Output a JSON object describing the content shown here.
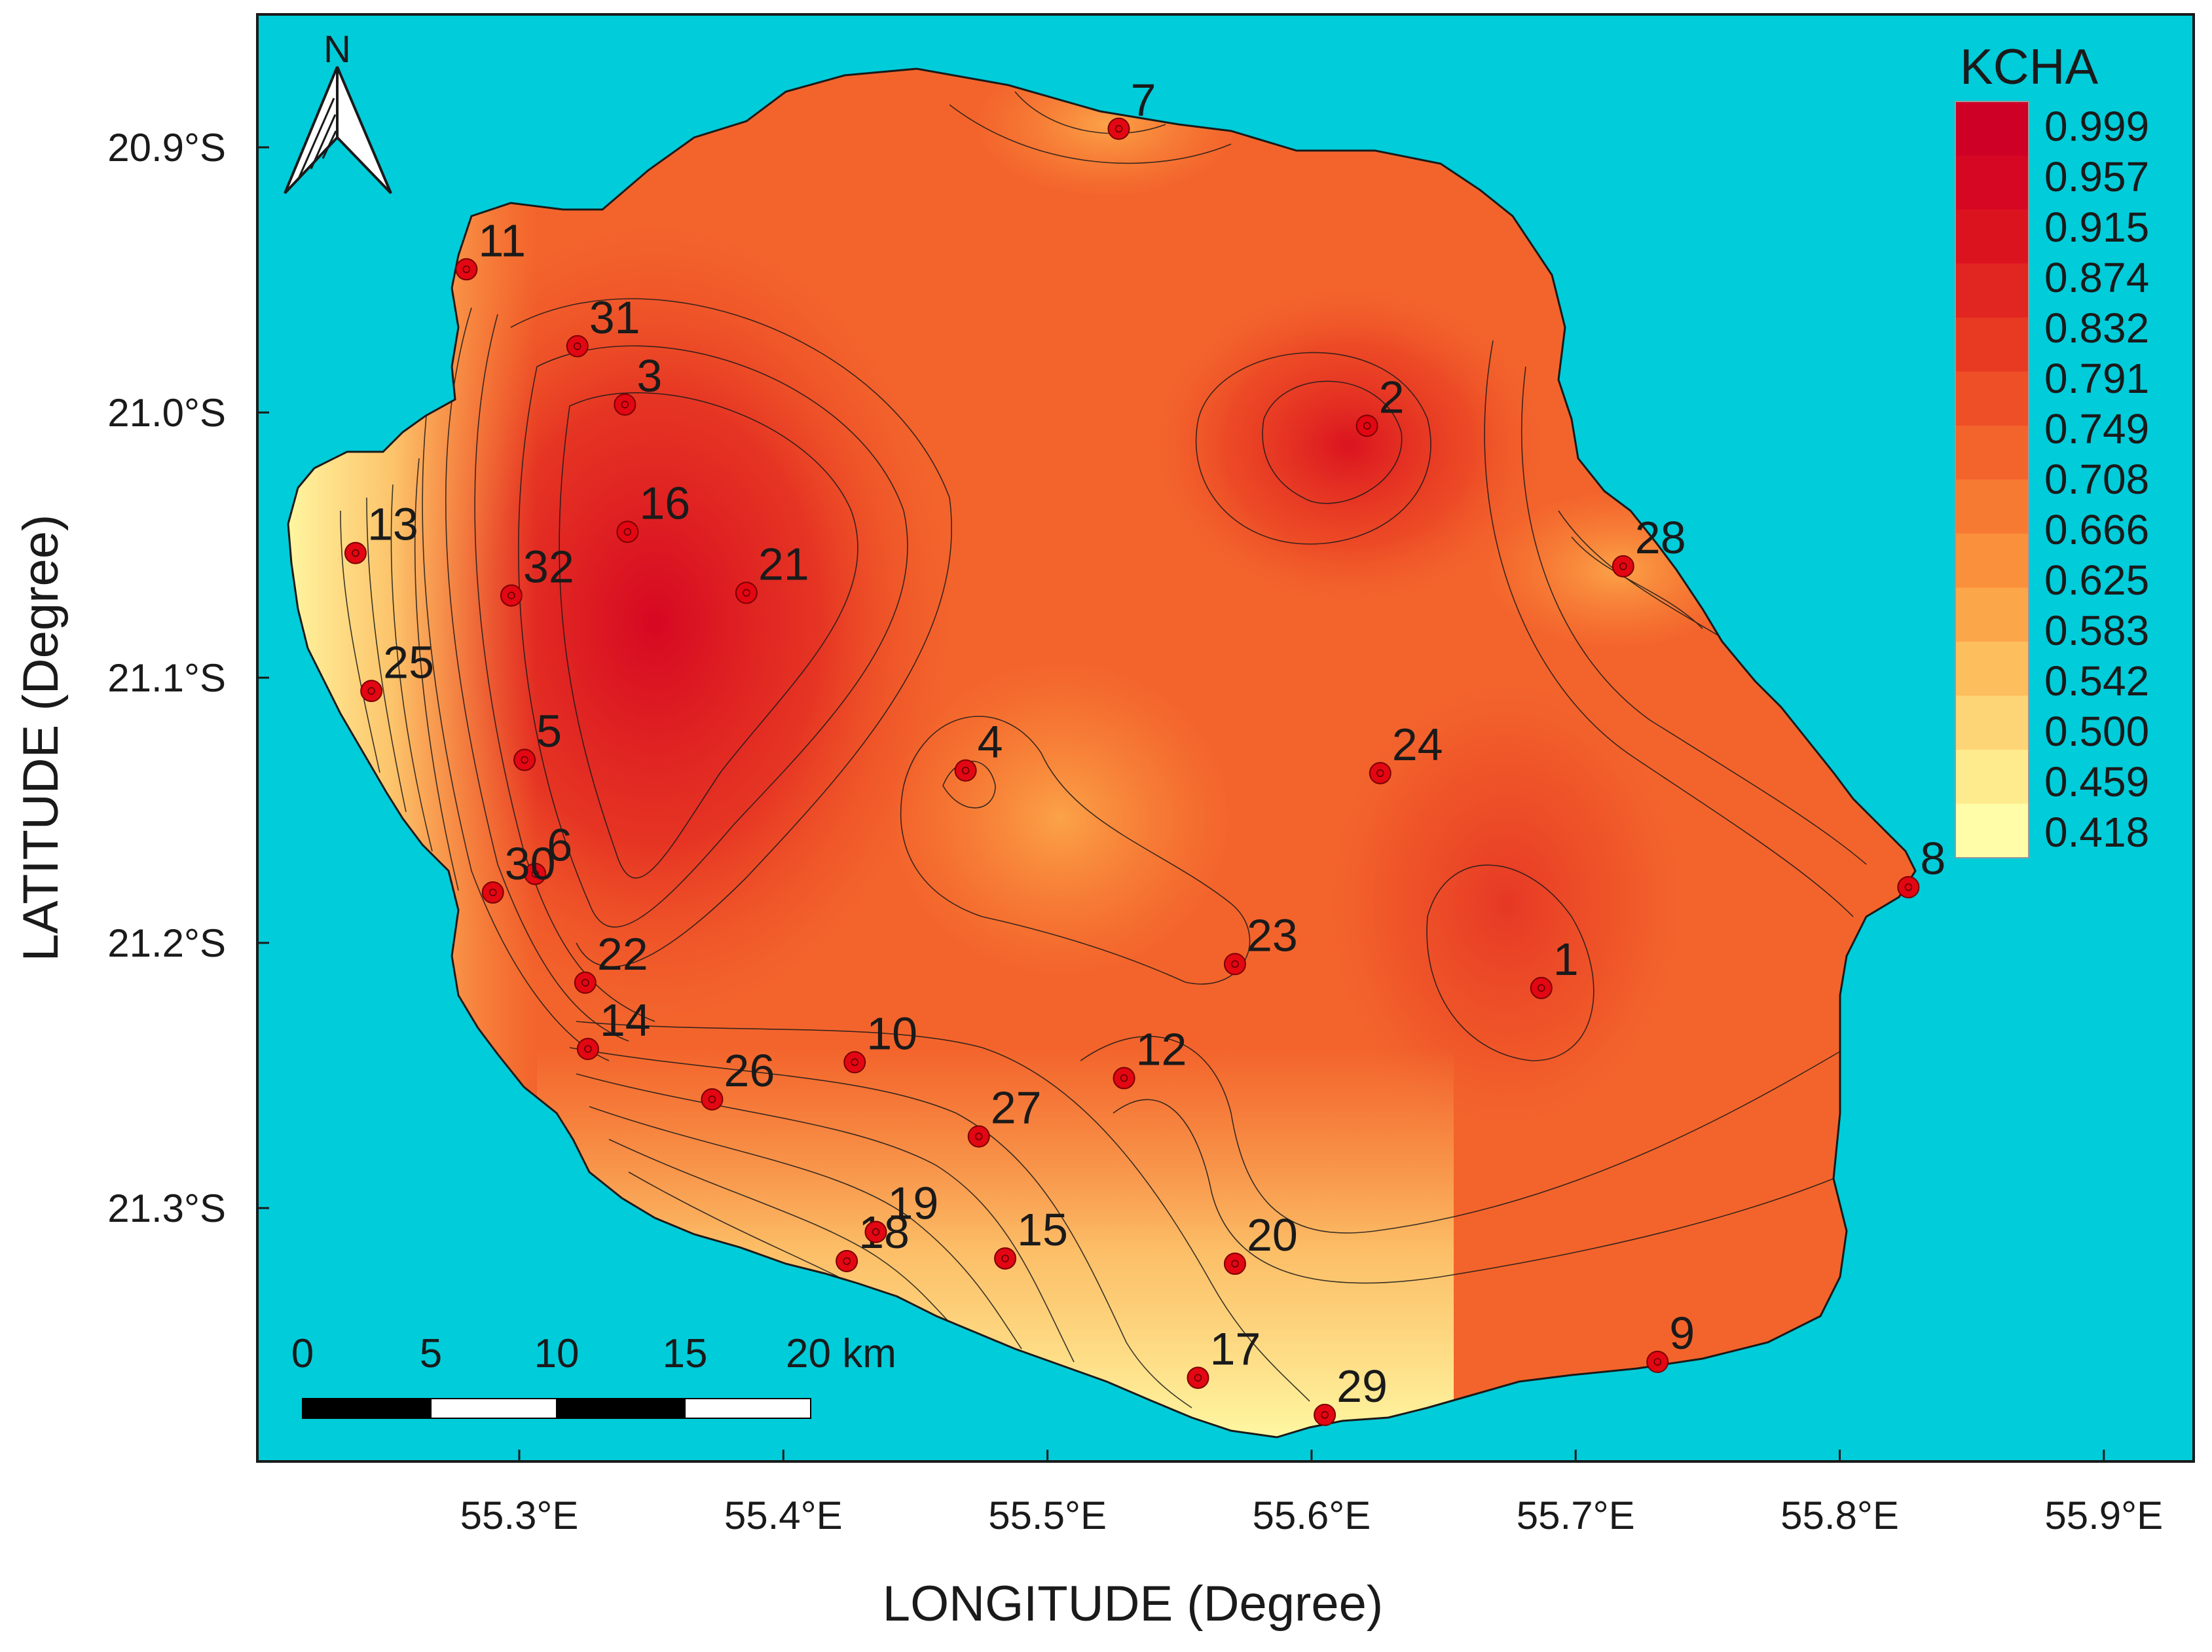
{
  "map": {
    "colors": {
      "sea": "#00CCDA",
      "ramp": [
        "#FFFDA8",
        "#FEEB8E",
        "#FED576",
        "#FDBE5E",
        "#FCA64A",
        "#FA903B",
        "#F77A33",
        "#F3642C",
        "#EE4F26",
        "#E83A22",
        "#E12520",
        "#DB131F",
        "#D60722",
        "#CE0026"
      ],
      "station_fill": "#E30613",
      "contour": "#1a1a1a"
    },
    "x_ticks": [
      "55.3°E",
      "55.4°E",
      "55.5°E",
      "55.6°E",
      "55.7°E",
      "55.8°E",
      "55.9°E"
    ],
    "y_ticks": [
      "20.9°S",
      "21.0°S",
      "21.1°S",
      "21.2°S",
      "21.3°S"
    ],
    "x_axis_title": "LONGITUDE (Degree)",
    "y_axis_title": "LATITUDE (Degree)",
    "legend": {
      "title": "KCHA",
      "labels": [
        "0.999",
        "0.957",
        "0.915",
        "0.874",
        "0.832",
        "0.791",
        "0.749",
        "0.708",
        "0.666",
        "0.625",
        "0.583",
        "0.542",
        "0.500",
        "0.459",
        "0.418"
      ]
    },
    "north_arrow": {
      "label": "N",
      "icon": "north-arrow-icon"
    },
    "scale_bar": {
      "labels": [
        "0",
        "5",
        "10",
        "15",
        "20 km"
      ]
    },
    "stations": [
      {
        "id": "1",
        "lon": 55.687,
        "lat": -21.217
      },
      {
        "id": "2",
        "lon": 55.621,
        "lat": -21.005
      },
      {
        "id": "3",
        "lon": 55.34,
        "lat": -20.997
      },
      {
        "id": "4",
        "lon": 55.469,
        "lat": -21.135
      },
      {
        "id": "5",
        "lon": 55.302,
        "lat": -21.131
      },
      {
        "id": "6",
        "lon": 55.306,
        "lat": -21.174
      },
      {
        "id": "7",
        "lon": 55.527,
        "lat": -20.893
      },
      {
        "id": "8",
        "lon": 55.826,
        "lat": -21.179
      },
      {
        "id": "9",
        "lon": 55.731,
        "lat": -21.358
      },
      {
        "id": "10",
        "lon": 55.427,
        "lat": -21.245
      },
      {
        "id": "11",
        "lon": 55.28,
        "lat": -20.946
      },
      {
        "id": "12",
        "lon": 55.529,
        "lat": -21.251
      },
      {
        "id": "13",
        "lon": 55.238,
        "lat": -21.053
      },
      {
        "id": "14",
        "lon": 55.326,
        "lat": -21.24
      },
      {
        "id": "15",
        "lon": 55.484,
        "lat": -21.319
      },
      {
        "id": "16",
        "lon": 55.341,
        "lat": -21.045
      },
      {
        "id": "17",
        "lon": 55.557,
        "lat": -21.364
      },
      {
        "id": "18",
        "lon": 55.424,
        "lat": -21.32
      },
      {
        "id": "19",
        "lon": 55.435,
        "lat": -21.309
      },
      {
        "id": "20",
        "lon": 55.571,
        "lat": -21.321
      },
      {
        "id": "21",
        "lon": 55.386,
        "lat": -21.068
      },
      {
        "id": "22",
        "lon": 55.325,
        "lat": -21.215
      },
      {
        "id": "23",
        "lon": 55.571,
        "lat": -21.208
      },
      {
        "id": "24",
        "lon": 55.626,
        "lat": -21.136
      },
      {
        "id": "25",
        "lon": 55.244,
        "lat": -21.105
      },
      {
        "id": "26",
        "lon": 55.373,
        "lat": -21.259
      },
      {
        "id": "27",
        "lon": 55.474,
        "lat": -21.273
      },
      {
        "id": "28",
        "lon": 55.718,
        "lat": -21.058
      },
      {
        "id": "29",
        "lon": 55.605,
        "lat": -21.378
      },
      {
        "id": "30",
        "lon": 55.29,
        "lat": -21.181
      },
      {
        "id": "31",
        "lon": 55.322,
        "lat": -20.975
      },
      {
        "id": "32",
        "lon": 55.297,
        "lat": -21.069
      }
    ]
  }
}
